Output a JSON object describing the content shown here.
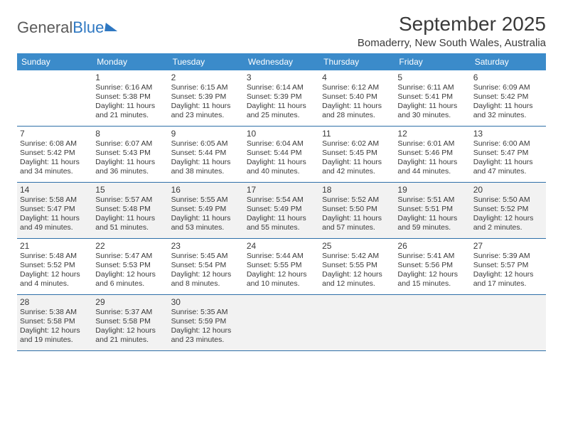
{
  "logo": {
    "text1": "General",
    "text2": "Blue"
  },
  "title": "September 2025",
  "location": "Bomaderry, New South Wales, Australia",
  "colors": {
    "header_bg": "#3b8bca",
    "header_text": "#ffffff",
    "rule": "#2f6fa8",
    "shade_bg": "#f2f2f2",
    "text": "#3a3a3a",
    "logo_gray": "#5a5a5a",
    "logo_blue": "#2f78c2"
  },
  "daysOfWeek": [
    "Sunday",
    "Monday",
    "Tuesday",
    "Wednesday",
    "Thursday",
    "Friday",
    "Saturday"
  ],
  "weeks": [
    [
      {
        "blank": true
      },
      {
        "n": "1",
        "sunrise": "6:16 AM",
        "sunset": "5:38 PM",
        "dayH": "11",
        "dayM": "21"
      },
      {
        "n": "2",
        "sunrise": "6:15 AM",
        "sunset": "5:39 PM",
        "dayH": "11",
        "dayM": "23"
      },
      {
        "n": "3",
        "sunrise": "6:14 AM",
        "sunset": "5:39 PM",
        "dayH": "11",
        "dayM": "25"
      },
      {
        "n": "4",
        "sunrise": "6:12 AM",
        "sunset": "5:40 PM",
        "dayH": "11",
        "dayM": "28"
      },
      {
        "n": "5",
        "sunrise": "6:11 AM",
        "sunset": "5:41 PM",
        "dayH": "11",
        "dayM": "30"
      },
      {
        "n": "6",
        "sunrise": "6:09 AM",
        "sunset": "5:42 PM",
        "dayH": "11",
        "dayM": "32"
      }
    ],
    [
      {
        "n": "7",
        "sunrise": "6:08 AM",
        "sunset": "5:42 PM",
        "dayH": "11",
        "dayM": "34"
      },
      {
        "n": "8",
        "sunrise": "6:07 AM",
        "sunset": "5:43 PM",
        "dayH": "11",
        "dayM": "36"
      },
      {
        "n": "9",
        "sunrise": "6:05 AM",
        "sunset": "5:44 PM",
        "dayH": "11",
        "dayM": "38"
      },
      {
        "n": "10",
        "sunrise": "6:04 AM",
        "sunset": "5:44 PM",
        "dayH": "11",
        "dayM": "40"
      },
      {
        "n": "11",
        "sunrise": "6:02 AM",
        "sunset": "5:45 PM",
        "dayH": "11",
        "dayM": "42"
      },
      {
        "n": "12",
        "sunrise": "6:01 AM",
        "sunset": "5:46 PM",
        "dayH": "11",
        "dayM": "44"
      },
      {
        "n": "13",
        "sunrise": "6:00 AM",
        "sunset": "5:47 PM",
        "dayH": "11",
        "dayM": "47"
      }
    ],
    [
      {
        "n": "14",
        "sunrise": "5:58 AM",
        "sunset": "5:47 PM",
        "dayH": "11",
        "dayM": "49"
      },
      {
        "n": "15",
        "sunrise": "5:57 AM",
        "sunset": "5:48 PM",
        "dayH": "11",
        "dayM": "51"
      },
      {
        "n": "16",
        "sunrise": "5:55 AM",
        "sunset": "5:49 PM",
        "dayH": "11",
        "dayM": "53"
      },
      {
        "n": "17",
        "sunrise": "5:54 AM",
        "sunset": "5:49 PM",
        "dayH": "11",
        "dayM": "55"
      },
      {
        "n": "18",
        "sunrise": "5:52 AM",
        "sunset": "5:50 PM",
        "dayH": "11",
        "dayM": "57"
      },
      {
        "n": "19",
        "sunrise": "5:51 AM",
        "sunset": "5:51 PM",
        "dayH": "11",
        "dayM": "59"
      },
      {
        "n": "20",
        "sunrise": "5:50 AM",
        "sunset": "5:52 PM",
        "dayH": "12",
        "dayM": "2"
      }
    ],
    [
      {
        "n": "21",
        "sunrise": "5:48 AM",
        "sunset": "5:52 PM",
        "dayH": "12",
        "dayM": "4"
      },
      {
        "n": "22",
        "sunrise": "5:47 AM",
        "sunset": "5:53 PM",
        "dayH": "12",
        "dayM": "6"
      },
      {
        "n": "23",
        "sunrise": "5:45 AM",
        "sunset": "5:54 PM",
        "dayH": "12",
        "dayM": "8"
      },
      {
        "n": "24",
        "sunrise": "5:44 AM",
        "sunset": "5:55 PM",
        "dayH": "12",
        "dayM": "10"
      },
      {
        "n": "25",
        "sunrise": "5:42 AM",
        "sunset": "5:55 PM",
        "dayH": "12",
        "dayM": "12"
      },
      {
        "n": "26",
        "sunrise": "5:41 AM",
        "sunset": "5:56 PM",
        "dayH": "12",
        "dayM": "15"
      },
      {
        "n": "27",
        "sunrise": "5:39 AM",
        "sunset": "5:57 PM",
        "dayH": "12",
        "dayM": "17"
      }
    ],
    [
      {
        "n": "28",
        "sunrise": "5:38 AM",
        "sunset": "5:58 PM",
        "dayH": "12",
        "dayM": "19"
      },
      {
        "n": "29",
        "sunrise": "5:37 AM",
        "sunset": "5:58 PM",
        "dayH": "12",
        "dayM": "21"
      },
      {
        "n": "30",
        "sunrise": "5:35 AM",
        "sunset": "5:59 PM",
        "dayH": "12",
        "dayM": "23"
      },
      {
        "blank": true
      },
      {
        "blank": true
      },
      {
        "blank": true
      },
      {
        "blank": true
      }
    ]
  ]
}
